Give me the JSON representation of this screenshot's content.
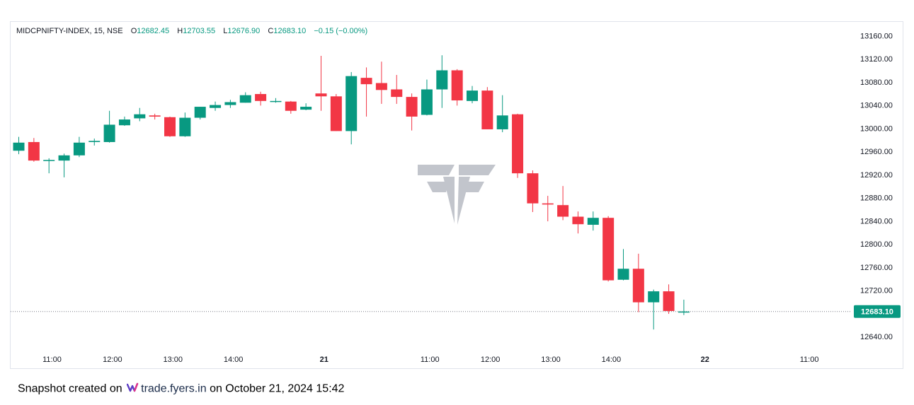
{
  "legend": {
    "symbol": "MIDCPNIFTY-INDEX, 15, NSE",
    "o_label": "O",
    "o_value": "12682.45",
    "h_label": "H",
    "h_value": "12703.55",
    "l_label": "L",
    "l_value": "12676.90",
    "c_label": "C",
    "c_value": "12683.10",
    "change": "−0.15 (−0.00%)"
  },
  "footer": {
    "prefix": "Snapshot created on",
    "brand": "trade.fyers.in",
    "suffix": "on October 21, 2024 15:42",
    "logo_icon": "fyers-logo-icon"
  },
  "colors": {
    "up": "#089981",
    "down": "#f23645",
    "last_price": "#089981",
    "watermark": "#c2c5cc"
  },
  "chart_data": {
    "type": "candlestick",
    "ylim": [
      12618,
      13180
    ],
    "yticks": [
      12640,
      12680,
      12720,
      12760,
      12800,
      12840,
      12880,
      12920,
      12960,
      13000,
      13040,
      13080,
      13120,
      13160
    ],
    "ytick_labels": [
      "12640.00",
      "12680.00",
      "12720.00",
      "12760.00",
      "12800.00",
      "12840.00",
      "12880.00",
      "12920.00",
      "12960.00",
      "13000.00",
      "13040.00",
      "13080.00",
      "13120.00",
      "13160.00"
    ],
    "xticks": [
      {
        "index": 2.2,
        "label": "11:00"
      },
      {
        "index": 6.2,
        "label": "12:00"
      },
      {
        "index": 10.2,
        "label": "13:00"
      },
      {
        "index": 14.2,
        "label": "14:00"
      },
      {
        "index": 20.2,
        "label": "21"
      },
      {
        "index": 27.2,
        "label": "11:00"
      },
      {
        "index": 31.2,
        "label": "12:00"
      },
      {
        "index": 35.2,
        "label": "13:00"
      },
      {
        "index": 39.2,
        "label": "14:00"
      },
      {
        "index": 45.4,
        "label": "22"
      },
      {
        "index": 52.3,
        "label": "11:00"
      }
    ],
    "last_price": 12683.1,
    "last_price_label": "12683.10",
    "candles": [
      {
        "o": 12961,
        "h": 12985,
        "l": 12955,
        "c": 12975
      },
      {
        "o": 12976,
        "h": 12983,
        "l": 12942,
        "c": 12944
      },
      {
        "o": 12944,
        "h": 12948,
        "l": 12922,
        "c": 12945
      },
      {
        "o": 12944,
        "h": 12956,
        "l": 12915,
        "c": 12953
      },
      {
        "o": 12953,
        "h": 12985,
        "l": 12950,
        "c": 12975
      },
      {
        "o": 12976,
        "h": 12982,
        "l": 12970,
        "c": 12978
      },
      {
        "o": 12976,
        "h": 13030,
        "l": 12975,
        "c": 13006
      },
      {
        "o": 13005,
        "h": 13020,
        "l": 13004,
        "c": 13015
      },
      {
        "o": 13017,
        "h": 13035,
        "l": 13012,
        "c": 13024
      },
      {
        "o": 13022,
        "h": 13025,
        "l": 13015,
        "c": 13020
      },
      {
        "o": 13019,
        "h": 13020,
        "l": 12985,
        "c": 12986
      },
      {
        "o": 12986,
        "h": 13027,
        "l": 12985,
        "c": 13018
      },
      {
        "o": 13018,
        "h": 13037,
        "l": 13015,
        "c": 13037
      },
      {
        "o": 13035,
        "h": 13046,
        "l": 13030,
        "c": 13040
      },
      {
        "o": 13040,
        "h": 13049,
        "l": 13035,
        "c": 13045
      },
      {
        "o": 13044,
        "h": 13062,
        "l": 13044,
        "c": 13057
      },
      {
        "o": 13059,
        "h": 13063,
        "l": 13039,
        "c": 13047
      },
      {
        "o": 13047,
        "h": 13052,
        "l": 13044,
        "c": 13047
      },
      {
        "o": 13046,
        "h": 13047,
        "l": 13025,
        "c": 13030
      },
      {
        "o": 13032,
        "h": 13043,
        "l": 13031,
        "c": 13037
      },
      {
        "o": 13060,
        "h": 13125,
        "l": 13030,
        "c": 13055
      },
      {
        "o": 13055,
        "h": 13059,
        "l": 12995,
        "c": 12995
      },
      {
        "o": 12995,
        "h": 13097,
        "l": 12972,
        "c": 13090
      },
      {
        "o": 13087,
        "h": 13105,
        "l": 13020,
        "c": 13076
      },
      {
        "o": 13078,
        "h": 13115,
        "l": 13042,
        "c": 13066
      },
      {
        "o": 13067,
        "h": 13092,
        "l": 13042,
        "c": 13054
      },
      {
        "o": 13054,
        "h": 13060,
        "l": 12996,
        "c": 13020
      },
      {
        "o": 13023,
        "h": 13084,
        "l": 13022,
        "c": 13067
      },
      {
        "o": 13067,
        "h": 13126,
        "l": 13035,
        "c": 13100
      },
      {
        "o": 13100,
        "h": 13102,
        "l": 13039,
        "c": 13048
      },
      {
        "o": 13047,
        "h": 13073,
        "l": 13043,
        "c": 13065
      },
      {
        "o": 13065,
        "h": 13071,
        "l": 12998,
        "c": 12998
      },
      {
        "o": 12998,
        "h": 13057,
        "l": 12993,
        "c": 13022
      },
      {
        "o": 13024,
        "h": 13025,
        "l": 12914,
        "c": 12922
      },
      {
        "o": 12922,
        "h": 12927,
        "l": 12855,
        "c": 12870
      },
      {
        "o": 12870,
        "h": 12883,
        "l": 12839,
        "c": 12868
      },
      {
        "o": 12867,
        "h": 12900,
        "l": 12841,
        "c": 12847
      },
      {
        "o": 12847,
        "h": 12856,
        "l": 12818,
        "c": 12834
      },
      {
        "o": 12833,
        "h": 12856,
        "l": 12823,
        "c": 12845
      },
      {
        "o": 12845,
        "h": 12848,
        "l": 12735,
        "c": 12737
      },
      {
        "o": 12738,
        "h": 12791,
        "l": 12737,
        "c": 12757
      },
      {
        "o": 12757,
        "h": 12783,
        "l": 12682,
        "c": 12699
      },
      {
        "o": 12699,
        "h": 12721,
        "l": 12652,
        "c": 12718
      },
      {
        "o": 12718,
        "h": 12730,
        "l": 12679,
        "c": 12684
      },
      {
        "o": 12682.45,
        "h": 12703.55,
        "l": 12676.9,
        "c": 12683.1
      }
    ]
  }
}
